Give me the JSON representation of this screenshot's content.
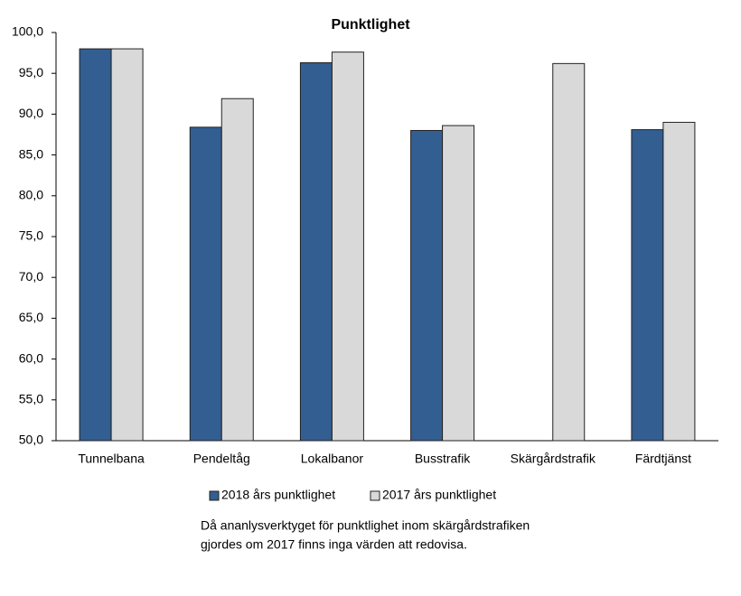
{
  "chart_data": {
    "type": "bar",
    "title": "Punktlighet",
    "categories": [
      "Tunnelbana",
      "Pendeltåg",
      "Lokalbanor",
      "Busstrafik",
      "Skärgårdstrafik",
      "Färdtjänst"
    ],
    "series": [
      {
        "name": "2018 års punktlighet",
        "color": "#335e91",
        "values": [
          98.0,
          88.4,
          96.3,
          88.0,
          null,
          88.1
        ]
      },
      {
        "name": "2017 års punktlighet",
        "color": "#d9d9d9",
        "values": [
          98.0,
          91.9,
          97.6,
          88.6,
          96.2,
          89.0
        ]
      }
    ],
    "ylim": [
      50,
      100
    ],
    "yticks": [
      {
        "value": 50,
        "label": "50,0"
      },
      {
        "value": 55,
        "label": "55,0"
      },
      {
        "value": 60,
        "label": "60,0"
      },
      {
        "value": 65,
        "label": "65,0"
      },
      {
        "value": 70,
        "label": "70,0"
      },
      {
        "value": 75,
        "label": "75,0"
      },
      {
        "value": 80,
        "label": "80,0"
      },
      {
        "value": 85,
        "label": "85,0"
      },
      {
        "value": 90,
        "label": "90,0"
      },
      {
        "value": 95,
        "label": "95,0"
      },
      {
        "value": 100,
        "label": "100,0"
      }
    ],
    "grid": false,
    "legend": "bottom",
    "annotation": [
      "Då ananlysverktyget för punktlighet inom skärgårdstrafiken",
      "gjordes om  2017 finns inga värden att redovisa."
    ]
  }
}
